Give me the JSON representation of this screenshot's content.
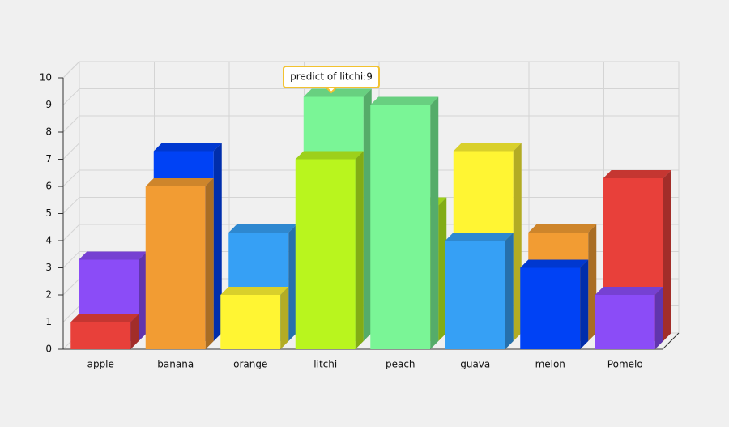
{
  "chart_data": {
    "type": "bar3d",
    "categories": [
      "apple",
      "banana",
      "orange",
      "litchi",
      "peach",
      "guava",
      "melon",
      "Pomelo"
    ],
    "series": [
      {
        "colors": [
          "#e8403a",
          "#f29c33",
          "#fff533",
          "#b9f51e",
          "#7af596",
          "#36a0f5",
          "#0042f5",
          "#8b4cf7"
        ],
        "values": [
          1,
          6,
          2,
          7,
          9,
          4,
          3,
          2
        ]
      },
      {
        "colors": [
          "#8b4cf7",
          "#0042f5",
          "#36a0f5",
          "#7af596",
          "#b9f51e",
          "#fff533",
          "#f29c33",
          "#e8403a"
        ],
        "values": [
          3,
          7,
          4,
          9,
          5,
          7,
          4,
          6
        ]
      }
    ],
    "ylim": [
      0,
      10
    ],
    "yticks": [
      0,
      1,
      2,
      3,
      4,
      5,
      6,
      7,
      8,
      9,
      10
    ],
    "grid": true,
    "tooltip": "predict of litchi:9"
  }
}
